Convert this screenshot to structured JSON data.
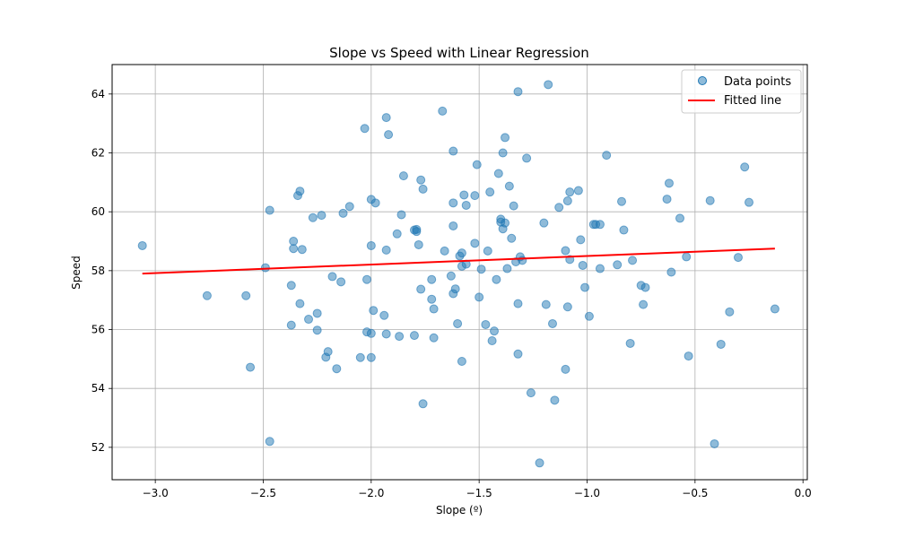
{
  "chart_data": {
    "type": "scatter",
    "title": "Slope vs Speed with Linear Regression",
    "xlabel": "Slope (º)",
    "ylabel": "Speed",
    "xlim": [
      -3.2,
      0.02
    ],
    "ylim": [
      50.9,
      65.0
    ],
    "xticks": [
      -3.0,
      -2.5,
      -2.0,
      -1.5,
      -1.0,
      -0.5,
      0.0
    ],
    "xtick_labels": [
      "−3.0",
      "−2.5",
      "−2.0",
      "−1.5",
      "−1.0",
      "−0.5",
      "0.0"
    ],
    "yticks": [
      52,
      54,
      56,
      58,
      60,
      62,
      64
    ],
    "ytick_labels": [
      "52",
      "54",
      "56",
      "58",
      "60",
      "62",
      "64"
    ],
    "grid": true,
    "legend_position": "top-right",
    "colors": {
      "points": "#1f77b4",
      "line": "#ff0000"
    },
    "series": [
      {
        "name": "Data points",
        "kind": "scatter",
        "points": [
          [
            -3.06,
            58.85
          ],
          [
            -2.76,
            57.15
          ],
          [
            -2.58,
            57.15
          ],
          [
            -2.56,
            54.72
          ],
          [
            -2.49,
            58.1
          ],
          [
            -2.47,
            60.05
          ],
          [
            -2.47,
            52.2
          ],
          [
            -2.37,
            56.15
          ],
          [
            -2.37,
            57.5
          ],
          [
            -2.36,
            58.75
          ],
          [
            -2.36,
            59.0
          ],
          [
            -2.34,
            60.55
          ],
          [
            -2.33,
            60.7
          ],
          [
            -2.33,
            56.88
          ],
          [
            -2.32,
            58.72
          ],
          [
            -2.29,
            56.35
          ],
          [
            -2.27,
            59.8
          ],
          [
            -2.25,
            56.55
          ],
          [
            -2.25,
            55.98
          ],
          [
            -2.23,
            59.88
          ],
          [
            -2.21,
            55.06
          ],
          [
            -2.2,
            55.25
          ],
          [
            -2.18,
            57.8
          ],
          [
            -2.16,
            54.67
          ],
          [
            -2.14,
            57.62
          ],
          [
            -2.13,
            59.95
          ],
          [
            -2.1,
            60.18
          ],
          [
            -2.05,
            55.05
          ],
          [
            -2.03,
            62.83
          ],
          [
            -2.02,
            57.7
          ],
          [
            -2.02,
            55.92
          ],
          [
            -2.0,
            60.42
          ],
          [
            -2.0,
            58.85
          ],
          [
            -2.0,
            55.87
          ],
          [
            -2.0,
            55.05
          ],
          [
            -1.99,
            56.65
          ],
          [
            -1.98,
            60.3
          ],
          [
            -1.94,
            56.48
          ],
          [
            -1.93,
            63.2
          ],
          [
            -1.93,
            58.7
          ],
          [
            -1.93,
            55.85
          ],
          [
            -1.92,
            62.62
          ],
          [
            -1.88,
            59.25
          ],
          [
            -1.87,
            55.77
          ],
          [
            -1.86,
            59.9
          ],
          [
            -1.85,
            61.22
          ],
          [
            -1.8,
            59.38
          ],
          [
            -1.8,
            55.8
          ],
          [
            -1.79,
            59.4
          ],
          [
            -1.79,
            59.33
          ],
          [
            -1.78,
            58.88
          ],
          [
            -1.77,
            61.08
          ],
          [
            -1.77,
            57.37
          ],
          [
            -1.76,
            60.77
          ],
          [
            -1.76,
            53.48
          ],
          [
            -1.72,
            57.7
          ],
          [
            -1.72,
            57.03
          ],
          [
            -1.71,
            56.7
          ],
          [
            -1.71,
            55.72
          ],
          [
            -1.67,
            63.42
          ],
          [
            -1.66,
            58.67
          ],
          [
            -1.63,
            57.82
          ],
          [
            -1.62,
            60.3
          ],
          [
            -1.62,
            59.52
          ],
          [
            -1.62,
            62.06
          ],
          [
            -1.62,
            57.22
          ],
          [
            -1.61,
            57.38
          ],
          [
            -1.6,
            56.2
          ],
          [
            -1.59,
            58.5
          ],
          [
            -1.58,
            58.6
          ],
          [
            -1.58,
            58.15
          ],
          [
            -1.58,
            54.92
          ],
          [
            -1.57,
            60.57
          ],
          [
            -1.56,
            60.22
          ],
          [
            -1.56,
            58.22
          ],
          [
            -1.52,
            60.55
          ],
          [
            -1.52,
            58.93
          ],
          [
            -1.51,
            61.6
          ],
          [
            -1.5,
            57.1
          ],
          [
            -1.49,
            58.05
          ],
          [
            -1.47,
            56.17
          ],
          [
            -1.46,
            58.67
          ],
          [
            -1.45,
            60.67
          ],
          [
            -1.44,
            55.62
          ],
          [
            -1.43,
            55.95
          ],
          [
            -1.42,
            57.7
          ],
          [
            -1.41,
            61.3
          ],
          [
            -1.4,
            59.65
          ],
          [
            -1.4,
            59.75
          ],
          [
            -1.39,
            59.42
          ],
          [
            -1.39,
            62.0
          ],
          [
            -1.38,
            62.52
          ],
          [
            -1.38,
            59.62
          ],
          [
            -1.37,
            58.07
          ],
          [
            -1.36,
            60.87
          ],
          [
            -1.35,
            59.1
          ],
          [
            -1.34,
            60.2
          ],
          [
            -1.33,
            58.3
          ],
          [
            -1.32,
            64.08
          ],
          [
            -1.32,
            56.88
          ],
          [
            -1.32,
            55.17
          ],
          [
            -1.31,
            58.47
          ],
          [
            -1.3,
            58.35
          ],
          [
            -1.28,
            61.82
          ],
          [
            -1.26,
            53.85
          ],
          [
            -1.22,
            51.47
          ],
          [
            -1.2,
            59.62
          ],
          [
            -1.19,
            56.85
          ],
          [
            -1.18,
            64.32
          ],
          [
            -1.16,
            56.2
          ],
          [
            -1.15,
            53.6
          ],
          [
            -1.13,
            60.15
          ],
          [
            -1.1,
            58.68
          ],
          [
            -1.1,
            54.65
          ],
          [
            -1.09,
            56.77
          ],
          [
            -1.09,
            60.37
          ],
          [
            -1.08,
            60.67
          ],
          [
            -1.08,
            58.38
          ],
          [
            -1.04,
            60.72
          ],
          [
            -1.03,
            59.05
          ],
          [
            -1.02,
            58.18
          ],
          [
            -1.01,
            57.43
          ],
          [
            -0.99,
            56.45
          ],
          [
            -0.97,
            59.57
          ],
          [
            -0.96,
            59.57
          ],
          [
            -0.94,
            59.57
          ],
          [
            -0.94,
            58.07
          ],
          [
            -0.91,
            61.92
          ],
          [
            -0.86,
            58.2
          ],
          [
            -0.84,
            60.35
          ],
          [
            -0.83,
            59.38
          ],
          [
            -0.8,
            55.53
          ],
          [
            -0.79,
            58.35
          ],
          [
            -0.75,
            57.5
          ],
          [
            -0.74,
            56.85
          ],
          [
            -0.73,
            57.43
          ],
          [
            -0.63,
            60.43
          ],
          [
            -0.62,
            60.97
          ],
          [
            -0.61,
            57.95
          ],
          [
            -0.57,
            59.78
          ],
          [
            -0.54,
            58.47
          ],
          [
            -0.53,
            55.1
          ],
          [
            -0.43,
            60.38
          ],
          [
            -0.41,
            52.12
          ],
          [
            -0.38,
            55.5
          ],
          [
            -0.34,
            56.6
          ],
          [
            -0.3,
            58.45
          ],
          [
            -0.27,
            61.52
          ],
          [
            -0.25,
            60.32
          ],
          [
            -0.13,
            56.7
          ]
        ]
      },
      {
        "name": "Fitted line",
        "kind": "line",
        "points": [
          [
            -3.06,
            57.9
          ],
          [
            -0.13,
            58.75
          ]
        ]
      }
    ]
  }
}
